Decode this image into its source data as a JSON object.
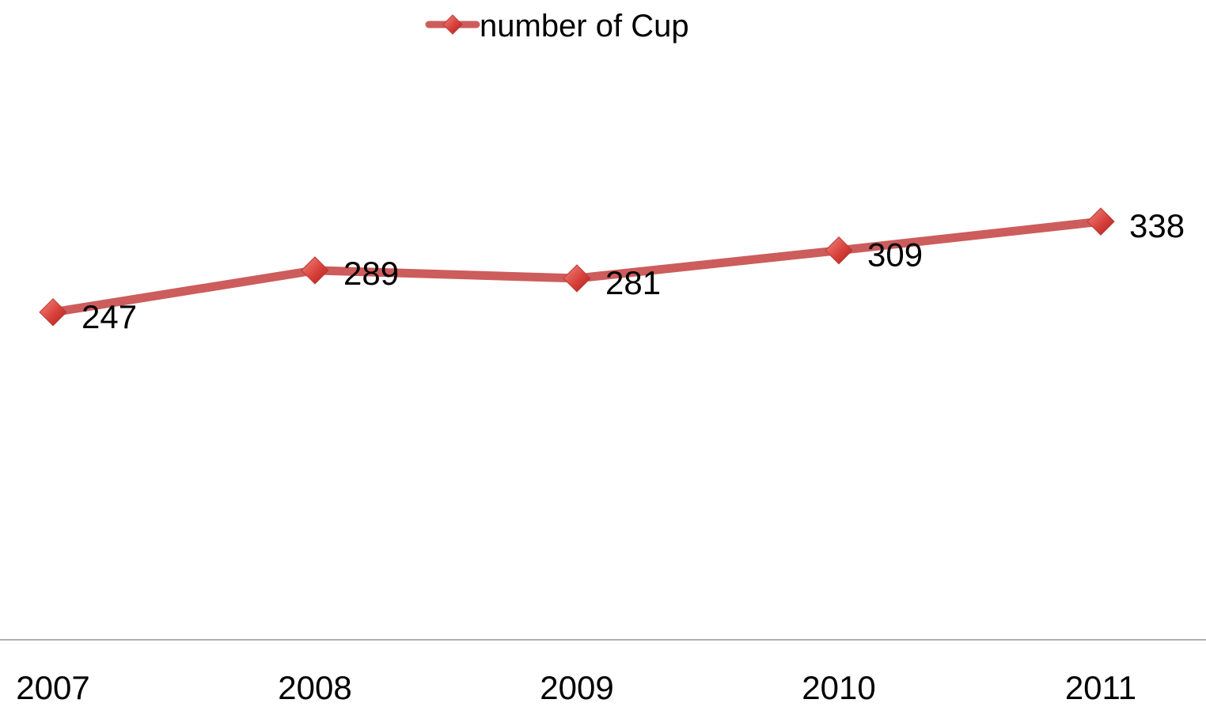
{
  "chart_data": {
    "type": "line",
    "categories": [
      "2007",
      "2008",
      "2009",
      "2010",
      "2011"
    ],
    "series": [
      {
        "name": "number of Cup",
        "values": [
          247,
          289,
          281,
          309,
          338
        ],
        "color": "#cd5c5c",
        "marker": "diamond",
        "data_labels": [
          "247",
          "289",
          "281",
          "309",
          "338"
        ]
      }
    ],
    "title": "",
    "xlabel": "",
    "ylabel": "",
    "ylim": [
      100,
      400
    ],
    "grid": false,
    "legend": "top-center",
    "y_axis_visible": false
  }
}
